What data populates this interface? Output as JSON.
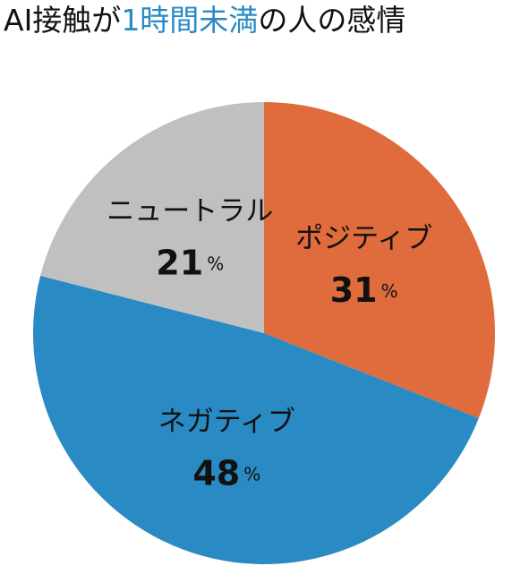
{
  "chart_data": {
    "type": "pie",
    "title": [
      "AI接触が",
      "1時間未満",
      "の人の感情"
    ],
    "title_colors": [
      "#111111",
      "#2a8bc4",
      "#111111"
    ],
    "categories": [
      "ポジティブ",
      "ネガティブ",
      "ニュートラル"
    ],
    "values": [
      31,
      48,
      21
    ],
    "unit": "%",
    "colors": [
      "#e06b3c",
      "#2a8bc4",
      "#c0c0c0"
    ]
  }
}
